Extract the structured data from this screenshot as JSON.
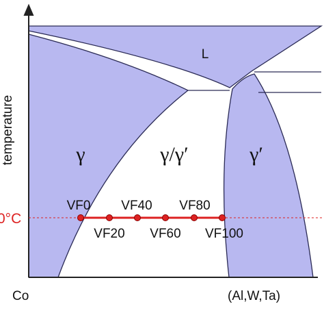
{
  "axes": {
    "x_start": "Co",
    "x_end": "(Al,W,Ta)",
    "y_label": "temperature"
  },
  "phases": [
    "L",
    "γ",
    "γ/γ′",
    "γ′"
  ],
  "isotherm": {
    "label": "0°C"
  },
  "points": [
    {
      "label": "VF0"
    },
    {
      "label": "VF20"
    },
    {
      "label": "VF40"
    },
    {
      "label": "VF60"
    },
    {
      "label": "VF80"
    },
    {
      "label": "VF100"
    }
  ]
}
